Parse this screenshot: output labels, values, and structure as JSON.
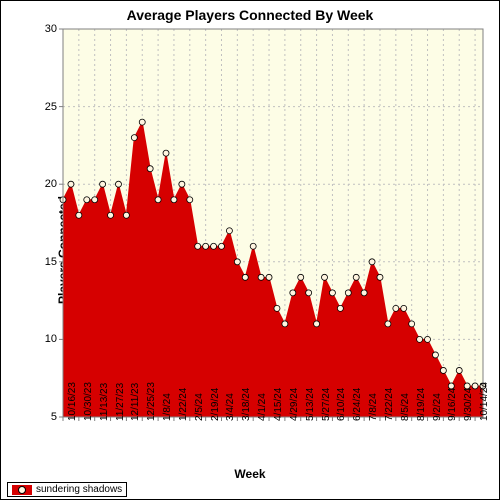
{
  "chart": {
    "type": "area",
    "title": "Average Players Connected By Week",
    "xlabel": "Week",
    "ylabel": "Players Connected",
    "title_fontsize": 14,
    "label_fontsize": 12,
    "tick_fontsize": 11,
    "ylim": [
      5,
      30
    ],
    "yticks": [
      5,
      10,
      15,
      20,
      25,
      30
    ],
    "x_categories": [
      "10/16/23",
      "10/30/23",
      "11/13/23",
      "11/27/23",
      "12/11/23",
      "12/25/23",
      "1/8/24",
      "1/22/24",
      "2/5/24",
      "2/19/24",
      "3/4/24",
      "3/18/24",
      "4/1/24",
      "4/15/24",
      "4/29/24",
      "5/13/24",
      "5/27/24",
      "6/10/24",
      "6/24/24",
      "7/8/24",
      "7/22/24",
      "8/5/24",
      "8/19/24",
      "9/2/24",
      "9/16/24",
      "9/30/24",
      "10/14/24"
    ],
    "x_tick_every": 2,
    "series": {
      "name": "sundering shadows",
      "fill_color": "#d60000",
      "line_color": "#d60000",
      "marker_fill": "#fff5e0",
      "marker_stroke": "#000000",
      "marker_radius": 3,
      "values": [
        19,
        20,
        18,
        19,
        19,
        20,
        18,
        20,
        18,
        23,
        24,
        21,
        19,
        22,
        19,
        20,
        19,
        16,
        16,
        16,
        16,
        17,
        15,
        14,
        16,
        14,
        14,
        12,
        11,
        13,
        14,
        13,
        11,
        14,
        13,
        12,
        13,
        14,
        13,
        15,
        14,
        11,
        12,
        12,
        11,
        10,
        10,
        9,
        8,
        7,
        8,
        7,
        7,
        7
      ]
    },
    "background_color": "#fdfde6",
    "grid_color": "#c0c0c0",
    "outer_background": "#ffffff",
    "axis_color": "#808080",
    "border_color": "#000000"
  },
  "legend": {
    "label": "sundering shadows"
  }
}
